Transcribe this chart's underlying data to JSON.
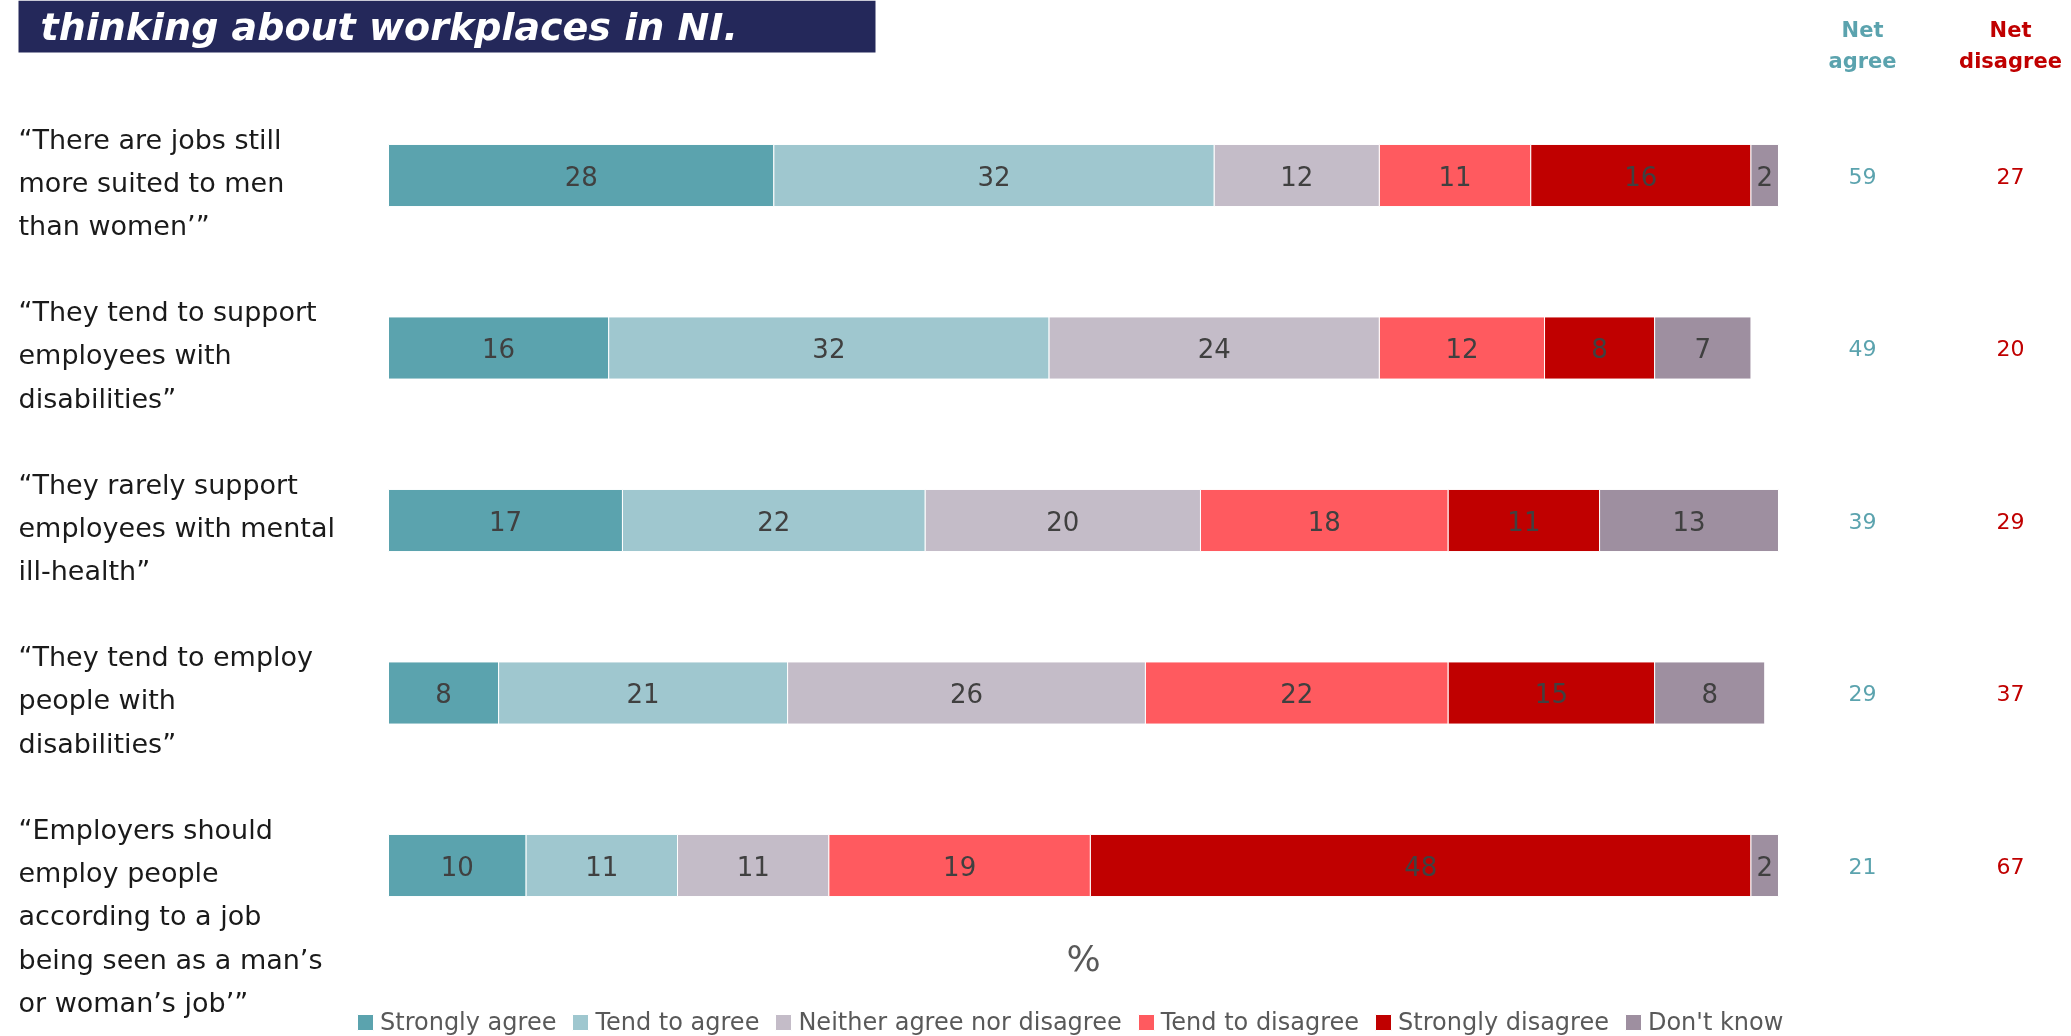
{
  "chart_data": {
    "type": "bar",
    "orientation": "horizontal",
    "stacked": true,
    "title": "thinking about workplaces in NI.",
    "xlabel": "%",
    "categories": [
      "“There are jobs still more suited to men than women’”",
      "“They tend to support employees with disabilities”",
      "“They rarely support employees with mental ill-health”",
      "“They tend to employ people with disabilities”",
      "“Employers should employ people according to a job being seen as a man’s or woman’s job’”"
    ],
    "series": [
      {
        "name": "Strongly agree",
        "color": "#5ba3ae",
        "values": [
          28,
          16,
          17,
          8,
          10
        ]
      },
      {
        "name": "Tend to agree",
        "color": "#9fc7cf",
        "values": [
          32,
          32,
          22,
          21,
          11
        ]
      },
      {
        "name": "Neither agree nor disagree",
        "color": "#c4bcc8",
        "values": [
          12,
          24,
          20,
          26,
          11
        ]
      },
      {
        "name": "Tend to disagree",
        "color": "#ff5a5f",
        "values": [
          11,
          12,
          18,
          22,
          19
        ]
      },
      {
        "name": "Strongly disagree",
        "color": "#c00000",
        "values": [
          16,
          8,
          11,
          15,
          48
        ]
      },
      {
        "name": "Don't know",
        "color": "#9e8fa0",
        "values": [
          2,
          7,
          13,
          8,
          2
        ]
      }
    ],
    "xlim": [
      0,
      122
    ],
    "tick_labels": false,
    "grid": false,
    "legend": "bottom",
    "data_labels": true,
    "annotations": [
      "Net agree",
      "Net disagree",
      "59",
      "27",
      "49",
      "20",
      "39",
      "29",
      "29",
      "37",
      "21",
      "67"
    ]
  }
}
